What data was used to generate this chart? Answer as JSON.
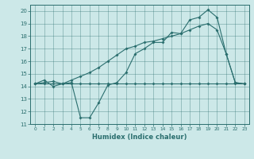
{
  "line1_x": [
    0,
    1,
    2,
    3,
    4,
    5,
    6,
    7,
    8,
    9,
    10,
    11,
    12,
    13,
    14,
    15,
    16,
    17,
    18,
    19,
    20,
    21,
    22,
    23
  ],
  "line1_y": [
    14.2,
    14.2,
    14.2,
    14.2,
    14.2,
    14.2,
    14.2,
    14.2,
    14.2,
    14.2,
    14.2,
    14.2,
    14.2,
    14.2,
    14.2,
    14.2,
    14.2,
    14.2,
    14.2,
    14.2,
    14.2,
    14.2,
    14.2,
    14.2
  ],
  "line2_x": [
    0,
    1,
    2,
    3,
    4,
    5,
    6,
    7,
    8,
    9,
    10,
    11,
    12,
    13,
    14,
    15,
    16,
    17,
    18,
    19,
    20,
    21,
    22,
    23
  ],
  "line2_y": [
    14.2,
    14.5,
    14.0,
    14.2,
    14.3,
    11.5,
    11.5,
    12.7,
    14.1,
    14.3,
    15.1,
    16.6,
    17.0,
    17.5,
    17.5,
    18.3,
    18.2,
    19.3,
    19.5,
    20.1,
    19.5,
    16.6,
    14.3,
    14.2
  ],
  "line3_x": [
    0,
    1,
    2,
    3,
    4,
    5,
    6,
    7,
    8,
    9,
    10,
    11,
    12,
    13,
    14,
    15,
    16,
    17,
    18,
    19,
    20,
    21,
    22,
    23
  ],
  "line3_y": [
    14.2,
    14.3,
    14.4,
    14.2,
    14.5,
    14.8,
    15.1,
    15.5,
    16.0,
    16.5,
    17.0,
    17.2,
    17.5,
    17.6,
    17.8,
    18.0,
    18.2,
    18.5,
    18.8,
    19.0,
    18.5,
    16.6,
    14.3,
    14.2
  ],
  "color": "#2a6e6e",
  "background": "#cce8e8",
  "xlabel": "Humidex (Indice chaleur)",
  "xlim": [
    -0.5,
    23.5
  ],
  "ylim": [
    11,
    20.5
  ],
  "xticks": [
    0,
    1,
    2,
    3,
    4,
    5,
    6,
    7,
    8,
    9,
    10,
    11,
    12,
    13,
    14,
    15,
    16,
    17,
    18,
    19,
    20,
    21,
    22,
    23
  ],
  "yticks": [
    11,
    12,
    13,
    14,
    15,
    16,
    17,
    18,
    19,
    20
  ]
}
